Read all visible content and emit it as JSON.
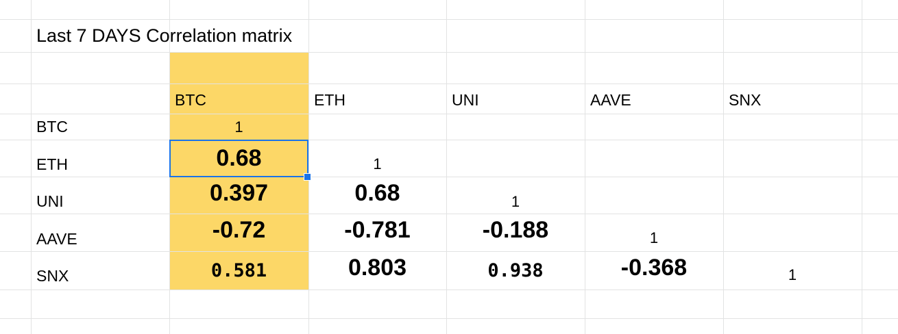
{
  "sheet": {
    "title": "Last 7 DAYS Correlation matrix",
    "columns": [
      "BTC",
      "ETH",
      "UNI",
      "AAVE",
      "SNX"
    ],
    "rows": [
      {
        "label": "BTC",
        "cells": [
          "1",
          "",
          "",
          "",
          ""
        ]
      },
      {
        "label": "ETH",
        "cells": [
          "0.68",
          "1",
          "",
          "",
          ""
        ]
      },
      {
        "label": "UNI",
        "cells": [
          "0.397",
          "0.68",
          "1",
          "",
          ""
        ]
      },
      {
        "label": "AAVE",
        "cells": [
          "-0.72",
          "-0.781",
          "-0.188",
          "1",
          ""
        ]
      },
      {
        "label": "SNX",
        "cells": [
          "0.581",
          "0.803",
          "0.938",
          "-0.368",
          "1"
        ]
      }
    ],
    "highlight_color": "#fcd767",
    "selection_color": "#1a73e8",
    "gridline_color": "#e2e3e3"
  }
}
